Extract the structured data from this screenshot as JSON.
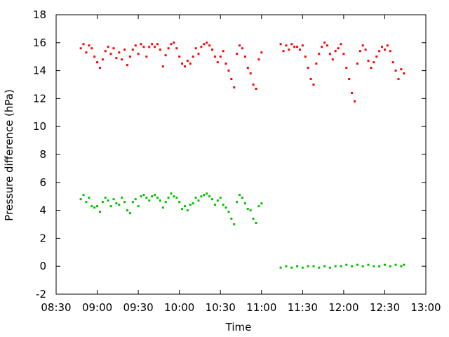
{
  "chart_data": {
    "type": "scatter",
    "title": "",
    "xlabel": "Time",
    "ylabel": "Pressure difference (hPa)",
    "xlim": [
      "08:30",
      "13:00"
    ],
    "ylim": [
      -2,
      18
    ],
    "x_ticks": [
      "08:30",
      "09:00",
      "09:30",
      "10:00",
      "10:30",
      "11:00",
      "11:30",
      "12:00",
      "12:30",
      "13:00"
    ],
    "y_ticks": [
      -2,
      0,
      2,
      4,
      6,
      8,
      10,
      12,
      14,
      16,
      18
    ],
    "grid": false,
    "legend": "none",
    "series": [
      {
        "color": "#ff0000",
        "points": [
          [
            "08:48",
            15.6
          ],
          [
            "08:50",
            15.9
          ],
          [
            "08:52",
            15.3
          ],
          [
            "08:54",
            15.8
          ],
          [
            "08:56",
            15.6
          ],
          [
            "08:58",
            15.0
          ],
          [
            "09:00",
            14.6
          ],
          [
            "09:02",
            14.2
          ],
          [
            "09:04",
            14.8
          ],
          [
            "09:06",
            15.4
          ],
          [
            "09:08",
            15.7
          ],
          [
            "09:10",
            15.2
          ],
          [
            "09:12",
            15.6
          ],
          [
            "09:14",
            14.9
          ],
          [
            "09:16",
            15.3
          ],
          [
            "09:18",
            14.8
          ],
          [
            "09:20",
            15.5
          ],
          [
            "09:22",
            14.4
          ],
          [
            "09:24",
            15.0
          ],
          [
            "09:26",
            15.5
          ],
          [
            "09:28",
            15.8
          ],
          [
            "09:30",
            15.2
          ],
          [
            "09:32",
            15.9
          ],
          [
            "09:34",
            15.7
          ],
          [
            "09:36",
            15.0
          ],
          [
            "09:38",
            15.7
          ],
          [
            "09:40",
            15.9
          ],
          [
            "09:42",
            15.7
          ],
          [
            "09:44",
            15.9
          ],
          [
            "09:46",
            15.5
          ],
          [
            "09:48",
            14.3
          ],
          [
            "09:50",
            15.1
          ],
          [
            "09:52",
            15.6
          ],
          [
            "09:54",
            15.9
          ],
          [
            "09:56",
            16.0
          ],
          [
            "09:58",
            15.6
          ],
          [
            "10:00",
            15.0
          ],
          [
            "10:02",
            14.5
          ],
          [
            "10:04",
            14.3
          ],
          [
            "10:06",
            14.7
          ],
          [
            "10:08",
            14.5
          ],
          [
            "10:10",
            15.0
          ],
          [
            "10:12",
            15.6
          ],
          [
            "10:14",
            15.2
          ],
          [
            "10:16",
            15.7
          ],
          [
            "10:18",
            15.9
          ],
          [
            "10:20",
            16.0
          ],
          [
            "10:22",
            15.8
          ],
          [
            "10:24",
            15.5
          ],
          [
            "10:26",
            15.0
          ],
          [
            "10:28",
            14.6
          ],
          [
            "10:30",
            15.0
          ],
          [
            "10:32",
            15.4
          ],
          [
            "10:34",
            14.5
          ],
          [
            "10:36",
            14.0
          ],
          [
            "10:38",
            13.4
          ],
          [
            "10:40",
            12.8
          ],
          [
            "10:42",
            15.2
          ],
          [
            "10:44",
            15.8
          ],
          [
            "10:46",
            15.6
          ],
          [
            "10:48",
            15.0
          ],
          [
            "10:50",
            14.2
          ],
          [
            "10:52",
            13.8
          ],
          [
            "10:54",
            13.0
          ],
          [
            "10:56",
            12.7
          ],
          [
            "10:58",
            14.8
          ],
          [
            "11:00",
            15.3
          ],
          [
            "11:14",
            15.9
          ],
          [
            "11:16",
            15.4
          ],
          [
            "11:18",
            15.8
          ],
          [
            "11:20",
            15.5
          ],
          [
            "11:22",
            15.9
          ],
          [
            "11:24",
            15.7
          ],
          [
            "11:26",
            15.7
          ],
          [
            "11:28",
            15.5
          ],
          [
            "11:30",
            15.8
          ],
          [
            "11:32",
            15.0
          ],
          [
            "11:34",
            14.2
          ],
          [
            "11:36",
            13.4
          ],
          [
            "11:38",
            13.0
          ],
          [
            "11:40",
            14.5
          ],
          [
            "11:42",
            15.2
          ],
          [
            "11:44",
            15.7
          ],
          [
            "11:46",
            16.0
          ],
          [
            "11:48",
            15.8
          ],
          [
            "11:50",
            15.2
          ],
          [
            "11:52",
            14.8
          ],
          [
            "11:54",
            15.4
          ],
          [
            "11:56",
            15.6
          ],
          [
            "11:58",
            15.9
          ],
          [
            "12:00",
            15.2
          ],
          [
            "12:02",
            14.2
          ],
          [
            "12:04",
            13.4
          ],
          [
            "12:06",
            12.4
          ],
          [
            "12:08",
            11.8
          ],
          [
            "12:10",
            14.5
          ],
          [
            "12:12",
            15.4
          ],
          [
            "12:14",
            15.8
          ],
          [
            "12:16",
            15.5
          ],
          [
            "12:18",
            14.7
          ],
          [
            "12:20",
            14.2
          ],
          [
            "12:22",
            14.6
          ],
          [
            "12:24",
            15.0
          ],
          [
            "12:26",
            15.4
          ],
          [
            "12:28",
            15.7
          ],
          [
            "12:30",
            15.5
          ],
          [
            "12:32",
            15.8
          ],
          [
            "12:34",
            15.4
          ],
          [
            "12:36",
            14.6
          ],
          [
            "12:38",
            14.0
          ],
          [
            "12:40",
            13.4
          ],
          [
            "12:42",
            14.1
          ],
          [
            "12:44",
            13.8
          ]
        ]
      },
      {
        "color": "#00c000",
        "points": [
          [
            "08:48",
            4.8
          ],
          [
            "08:50",
            5.1
          ],
          [
            "08:52",
            4.6
          ],
          [
            "08:54",
            4.9
          ],
          [
            "08:56",
            4.3
          ],
          [
            "08:58",
            4.2
          ],
          [
            "09:00",
            4.3
          ],
          [
            "09:02",
            3.9
          ],
          [
            "09:04",
            4.6
          ],
          [
            "09:06",
            4.9
          ],
          [
            "09:08",
            4.7
          ],
          [
            "09:10",
            4.3
          ],
          [
            "09:12",
            4.8
          ],
          [
            "09:14",
            4.5
          ],
          [
            "09:16",
            4.4
          ],
          [
            "09:18",
            4.9
          ],
          [
            "09:20",
            4.6
          ],
          [
            "09:22",
            4.0
          ],
          [
            "09:24",
            3.8
          ],
          [
            "09:26",
            4.6
          ],
          [
            "09:28",
            4.8
          ],
          [
            "09:30",
            4.3
          ],
          [
            "09:32",
            5.0
          ],
          [
            "09:34",
            5.1
          ],
          [
            "09:36",
            4.9
          ],
          [
            "09:38",
            4.7
          ],
          [
            "09:40",
            5.0
          ],
          [
            "09:42",
            5.1
          ],
          [
            "09:44",
            4.9
          ],
          [
            "09:46",
            4.7
          ],
          [
            "09:48",
            4.2
          ],
          [
            "09:50",
            4.6
          ],
          [
            "09:52",
            4.9
          ],
          [
            "09:54",
            5.2
          ],
          [
            "09:56",
            5.0
          ],
          [
            "09:58",
            4.9
          ],
          [
            "10:00",
            4.6
          ],
          [
            "10:02",
            4.1
          ],
          [
            "10:04",
            4.3
          ],
          [
            "10:06",
            4.0
          ],
          [
            "10:08",
            4.4
          ],
          [
            "10:10",
            4.5
          ],
          [
            "10:12",
            4.9
          ],
          [
            "10:14",
            4.7
          ],
          [
            "10:16",
            5.0
          ],
          [
            "10:18",
            5.1
          ],
          [
            "10:20",
            5.2
          ],
          [
            "10:22",
            5.0
          ],
          [
            "10:24",
            4.8
          ],
          [
            "10:26",
            4.4
          ],
          [
            "10:28",
            4.7
          ],
          [
            "10:30",
            4.9
          ],
          [
            "10:32",
            4.4
          ],
          [
            "10:34",
            4.2
          ],
          [
            "10:36",
            3.9
          ],
          [
            "10:38",
            3.4
          ],
          [
            "10:40",
            3.0
          ],
          [
            "10:42",
            4.6
          ],
          [
            "10:44",
            5.1
          ],
          [
            "10:46",
            4.9
          ],
          [
            "10:48",
            4.5
          ],
          [
            "10:50",
            4.1
          ],
          [
            "10:52",
            4.0
          ],
          [
            "10:54",
            3.4
          ],
          [
            "10:56",
            3.1
          ],
          [
            "10:58",
            4.3
          ],
          [
            "11:00",
            4.5
          ],
          [
            "11:14",
            -0.1
          ],
          [
            "11:18",
            0.0
          ],
          [
            "11:22",
            -0.1
          ],
          [
            "11:26",
            0.0
          ],
          [
            "11:30",
            -0.1
          ],
          [
            "11:34",
            0.0
          ],
          [
            "11:38",
            0.0
          ],
          [
            "11:42",
            -0.1
          ],
          [
            "11:46",
            0.0
          ],
          [
            "11:50",
            -0.1
          ],
          [
            "11:54",
            0.0
          ],
          [
            "11:58",
            0.0
          ],
          [
            "12:02",
            0.1
          ],
          [
            "12:06",
            0.0
          ],
          [
            "12:10",
            0.1
          ],
          [
            "12:14",
            0.0
          ],
          [
            "12:18",
            0.1
          ],
          [
            "12:22",
            0.0
          ],
          [
            "12:26",
            0.0
          ],
          [
            "12:30",
            0.1
          ],
          [
            "12:34",
            0.0
          ],
          [
            "12:38",
            0.1
          ],
          [
            "12:42",
            0.0
          ],
          [
            "12:44",
            0.1
          ]
        ]
      }
    ]
  }
}
